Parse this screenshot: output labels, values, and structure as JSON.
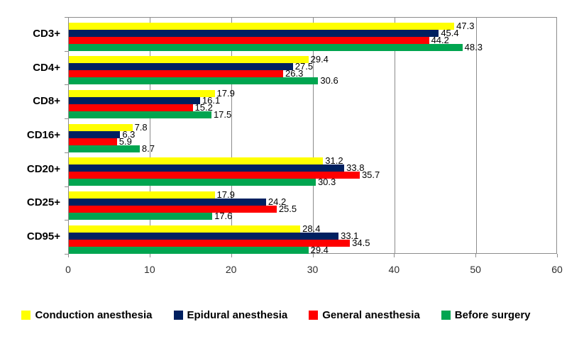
{
  "chart_data": {
    "type": "bar",
    "orientation": "horizontal",
    "title": "",
    "xlabel": "",
    "ylabel": "",
    "grid": true,
    "data_labels": true,
    "legend_position": "bottom",
    "categories": [
      "CD3+",
      "CD4+",
      "CD8+",
      "CD16+",
      "CD20+",
      "CD25+",
      "CD95+"
    ],
    "series": [
      {
        "name": "Conduction anesthesia",
        "color": "#FFFF00",
        "values": [
          47.3,
          29.4,
          17.9,
          7.8,
          31.2,
          17.9,
          28.4
        ]
      },
      {
        "name": "Epidural anesthesia",
        "color": "#002060",
        "values": [
          45.4,
          27.5,
          16.1,
          6.3,
          33.8,
          24.2,
          33.1
        ]
      },
      {
        "name": "General anesthesia",
        "color": "#FF0000",
        "values": [
          44.2,
          26.3,
          15.2,
          5.9,
          35.7,
          25.5,
          34.5
        ]
      },
      {
        "name": "Before surgery",
        "color": "#00A550",
        "values": [
          48.3,
          30.6,
          17.5,
          8.7,
          30.3,
          17.6,
          29.4
        ]
      }
    ],
    "x_axis": {
      "min": 0,
      "max": 60,
      "tick_interval": 10,
      "tick_labels": [
        "0",
        "10",
        "20",
        "30",
        "40",
        "50",
        "60"
      ]
    },
    "value_label_decimals": 1
  },
  "colors": {
    "gridline": "#8C8C8C",
    "axis": "#8C8C8C",
    "tick_label": "#2e2e2e",
    "value_label": "#000000",
    "category_label": "#000000",
    "background": "#FFFFFF"
  }
}
